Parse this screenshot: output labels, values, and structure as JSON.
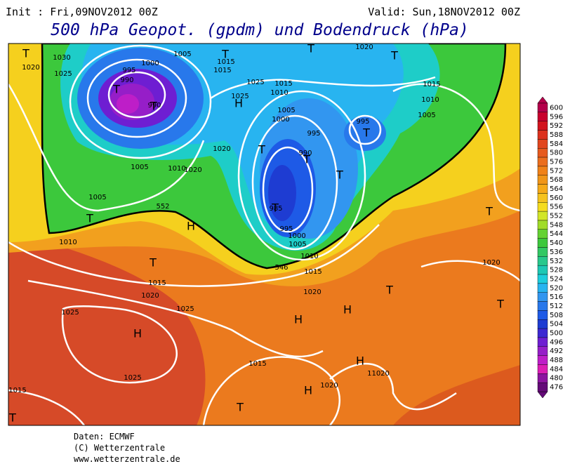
{
  "header": {
    "init": "Init : Fri,09NOV2012 00Z",
    "valid": "Valid: Sun,18NOV2012 00Z",
    "title": "500 hPa Geopot. (gpdm) und Bodendruck (hPa)"
  },
  "colorbar": {
    "values": [
      600,
      596,
      592,
      588,
      584,
      580,
      576,
      572,
      568,
      564,
      560,
      556,
      552,
      548,
      544,
      540,
      536,
      532,
      528,
      524,
      520,
      516,
      512,
      508,
      504,
      500,
      496,
      492,
      488,
      484,
      480,
      476
    ],
    "colors": [
      "#b4004b",
      "#c8002d",
      "#d2141e",
      "#dc321e",
      "#e1461e",
      "#e65a1e",
      "#eb6e1e",
      "#f08219",
      "#f09619",
      "#f5aa19",
      "#f5c31e",
      "#f5dc1e",
      "#d2e628",
      "#a0dc28",
      "#64d232",
      "#3cc83c",
      "#32c864",
      "#28c88c",
      "#1ec8b4",
      "#1ecddc",
      "#28b4f0",
      "#3296f0",
      "#2878eb",
      "#1e5ae6",
      "#1e3cd2",
      "#3c28d2",
      "#6e1ed2",
      "#961ec8",
      "#be1ec8",
      "#dc1eb4",
      "#8c14a0",
      "#640a78"
    ]
  },
  "pressure_centers": [
    "T",
    "T",
    "T",
    "T",
    "T",
    "H",
    "T",
    "T",
    "T",
    "T",
    "T",
    "T",
    "H",
    "T",
    "T",
    "T",
    "T",
    "H",
    "H",
    "T",
    "H",
    "H",
    "H",
    "T",
    "T"
  ],
  "isobar_labels": [
    "1030",
    "1020",
    "1025",
    "1005",
    "1015",
    "1015",
    "1020",
    "995",
    "1000",
    "990",
    "990",
    "1025",
    "1015",
    "1010",
    "1025",
    "1005",
    "1000",
    "995",
    "995",
    "1015",
    "1010",
    "1005",
    "1020",
    "1005",
    "1010",
    "1020",
    "990",
    "1005",
    "985",
    "995",
    "1000",
    "1005",
    "1010",
    "1015",
    "1010",
    "1020",
    "1015",
    "1020",
    "1025",
    "1025",
    "1020",
    "1025",
    "1015",
    "1020",
    "11020",
    "1015"
  ],
  "contour_labels": [
    "552",
    "546"
  ],
  "footer": [
    "Daten: ECMWF",
    "(C) Wetterzentrale",
    "www.wetterzentrale.de"
  ]
}
